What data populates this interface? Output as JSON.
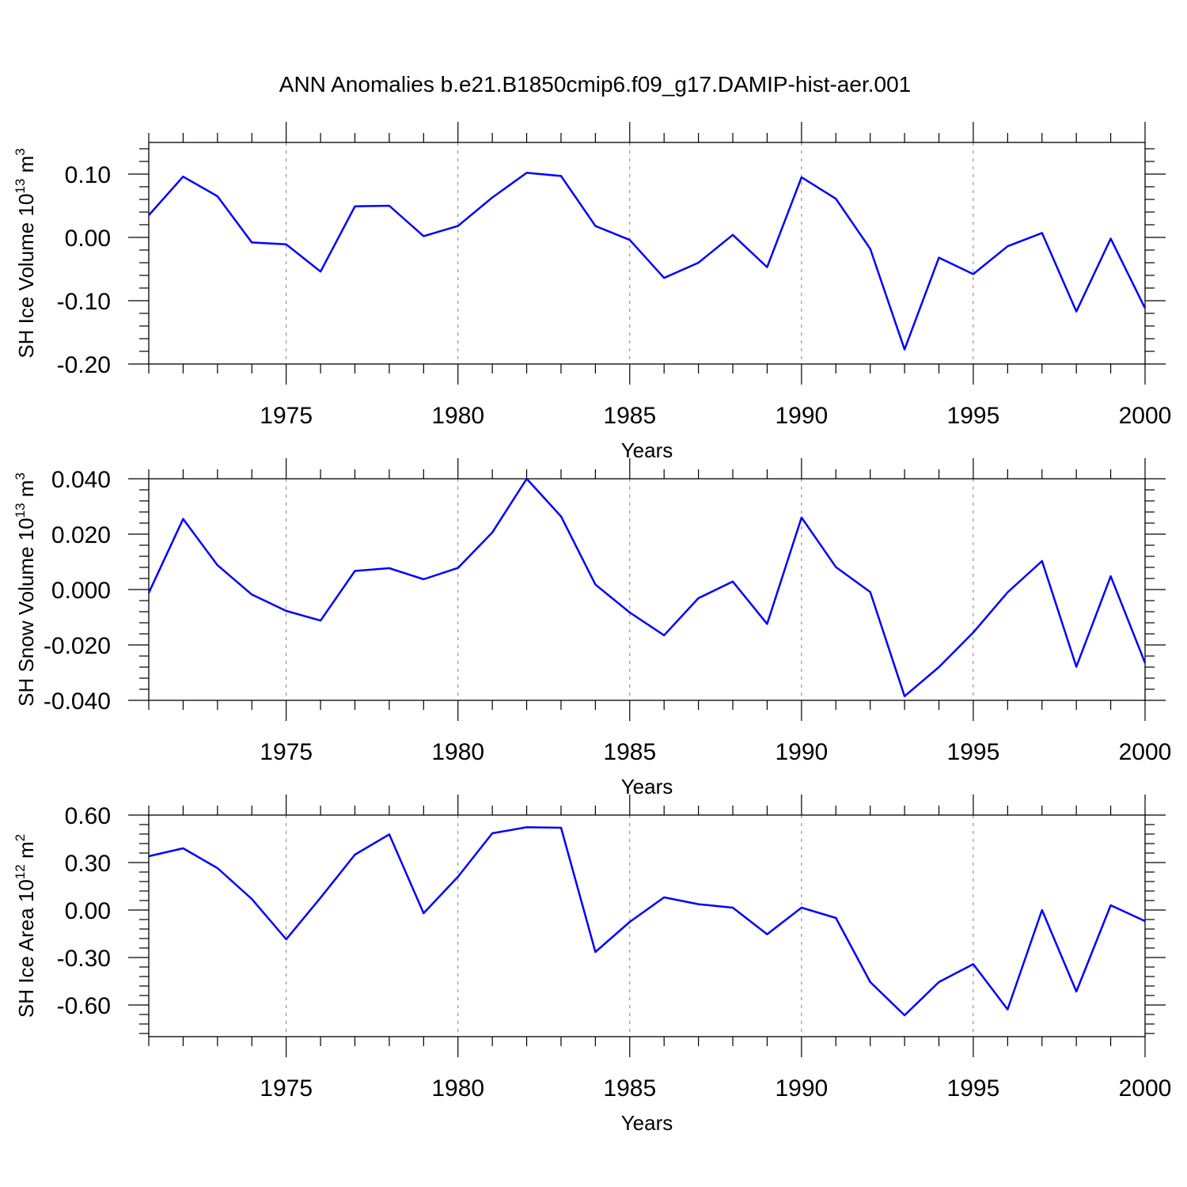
{
  "title": "ANN Anomalies b.e21.B1850cmip6.f09_g17.DAMIP-hist-aer.001",
  "colors": {
    "series": "#0000ff",
    "axis": "#000000",
    "grid": "#808080"
  },
  "chart_data": [
    {
      "type": "line",
      "xlabel": "Years",
      "ylabel": {
        "base": "SH Ice Volume 10",
        "exp1": "13",
        "unit": " m",
        "exp2": "3"
      },
      "xlim": [
        1971,
        2000
      ],
      "ylim": [
        -0.2,
        0.15
      ],
      "xticks": [
        1975,
        1980,
        1985,
        1990,
        1995,
        2000
      ],
      "xtick_labels": [
        "1975",
        "1980",
        "1985",
        "1990",
        "1995",
        "2000"
      ],
      "yticks": [
        -0.2,
        -0.1,
        0.0,
        0.1
      ],
      "ytick_labels": [
        "-0.20",
        "-0.10",
        "0.00",
        "0.10"
      ],
      "grid": "vertical dashed at major x ticks",
      "x": [
        1971,
        1972,
        1973,
        1974,
        1975,
        1976,
        1977,
        1978,
        1979,
        1980,
        1981,
        1982,
        1983,
        1984,
        1985,
        1986,
        1987,
        1988,
        1989,
        1990,
        1991,
        1992,
        1993,
        1994,
        1995,
        1996,
        1997,
        1998,
        1999,
        2000
      ],
      "values": [
        0.035,
        0.096,
        0.065,
        -0.008,
        -0.011,
        -0.054,
        0.049,
        0.05,
        0.002,
        0.018,
        0.063,
        0.102,
        0.097,
        0.018,
        -0.004,
        -0.064,
        -0.04,
        0.004,
        -0.047,
        0.095,
        0.061,
        -0.018,
        -0.177,
        -0.032,
        -0.058,
        -0.014,
        0.007,
        -0.117,
        -0.002,
        -0.112
      ]
    },
    {
      "type": "line",
      "xlabel": "Years",
      "ylabel": {
        "base": "SH Snow Volume 10",
        "exp1": "13",
        "unit": " m",
        "exp2": "3"
      },
      "xlim": [
        1971,
        2000
      ],
      "ylim": [
        -0.04,
        0.04
      ],
      "xticks": [
        1975,
        1980,
        1985,
        1990,
        1995,
        2000
      ],
      "xtick_labels": [
        "1975",
        "1980",
        "1985",
        "1990",
        "1995",
        "2000"
      ],
      "yticks": [
        -0.04,
        -0.02,
        0.0,
        0.02,
        0.04
      ],
      "ytick_labels": [
        "-0.040",
        "-0.020",
        "0.000",
        "0.020",
        "0.040"
      ],
      "grid": "vertical dashed at major x ticks",
      "x": [
        1971,
        1972,
        1973,
        1974,
        1975,
        1976,
        1977,
        1978,
        1979,
        1980,
        1981,
        1982,
        1983,
        1984,
        1985,
        1986,
        1987,
        1988,
        1989,
        1990,
        1991,
        1992,
        1993,
        1994,
        1995,
        1996,
        1997,
        1998,
        1999,
        2000
      ],
      "values": [
        -0.0012,
        0.0255,
        0.0088,
        -0.0018,
        -0.0077,
        -0.0112,
        0.0067,
        0.0077,
        0.0037,
        0.0078,
        0.0206,
        0.04,
        0.0264,
        0.0018,
        -0.0083,
        -0.0165,
        -0.0031,
        0.0029,
        -0.0124,
        0.026,
        0.0081,
        -0.0009,
        -0.0385,
        -0.028,
        -0.0155,
        -0.001,
        0.0103,
        -0.0279,
        0.0048,
        -0.0265
      ]
    },
    {
      "type": "line",
      "xlabel": "Years",
      "ylabel": {
        "base": "SH Ice Area 10",
        "exp1": "12",
        "unit": " m",
        "exp2": "2"
      },
      "xlim": [
        1971,
        2000
      ],
      "ylim": [
        -0.8,
        0.6
      ],
      "xticks": [
        1975,
        1980,
        1985,
        1990,
        1995,
        2000
      ],
      "xtick_labels": [
        "1975",
        "1980",
        "1985",
        "1990",
        "1995",
        "2000"
      ],
      "yticks": [
        -0.6,
        -0.3,
        0.0,
        0.3,
        0.6
      ],
      "ytick_labels": [
        "-0.60",
        "-0.30",
        "0.00",
        "0.30",
        "0.60"
      ],
      "grid": "vertical dashed at major x ticks",
      "x": [
        1971,
        1972,
        1973,
        1974,
        1975,
        1976,
        1977,
        1978,
        1979,
        1980,
        1981,
        1982,
        1983,
        1984,
        1985,
        1986,
        1987,
        1988,
        1989,
        1990,
        1991,
        1992,
        1993,
        1994,
        1995,
        1996,
        1997,
        1998,
        1999,
        2000
      ],
      "values": [
        0.34,
        0.39,
        0.265,
        0.07,
        -0.185,
        0.078,
        0.35,
        0.478,
        -0.02,
        0.21,
        0.485,
        0.523,
        0.52,
        -0.265,
        -0.075,
        0.08,
        0.037,
        0.015,
        -0.153,
        0.015,
        -0.05,
        -0.455,
        -0.665,
        -0.455,
        -0.342,
        -0.628,
        0.0,
        -0.515,
        0.03,
        -0.07
      ]
    }
  ]
}
